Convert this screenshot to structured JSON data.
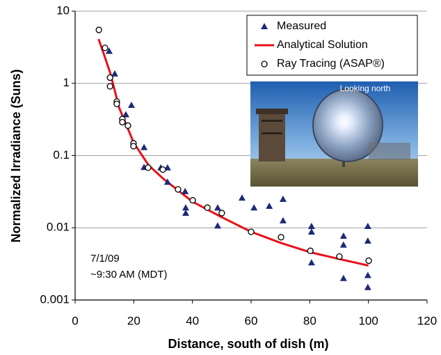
{
  "chart_data": {
    "type": "scatter",
    "xlabel": "Distance, south of dish (m)",
    "ylabel": "Normalized Irradiance (Suns)",
    "xlim": [
      0,
      120
    ],
    "xticks": [
      0,
      20,
      40,
      60,
      80,
      100,
      120
    ],
    "ylim": [
      0.001,
      10
    ],
    "yticks": [
      0.001,
      0.01,
      0.1,
      1,
      10
    ],
    "ylog": true,
    "grid": true,
    "legend": "upper right",
    "annotations": [
      "7/1/09",
      "~9:30 AM (MDT)"
    ],
    "inset_label": "Looking north",
    "series": [
      {
        "name": "Measured",
        "color": "#1c2a78",
        "marker": "triangle",
        "x": [
          11.6,
          13.5,
          17.3,
          19.2,
          23.5,
          23.5,
          29.2,
          31.5,
          31.5,
          37.5,
          37.7,
          37.7,
          48.6,
          48.6,
          56.9,
          61,
          66.2,
          70.9,
          70.9,
          80.6,
          80.6,
          80.6,
          91.5,
          91.5,
          91.5,
          99.8,
          99.8,
          99.8,
          99.8
        ],
        "values": [
          2.8,
          1.36,
          0.37,
          0.5,
          0.13,
          0.069,
          0.068,
          0.068,
          0.043,
          0.032,
          0.019,
          0.016,
          0.019,
          0.0107,
          0.026,
          0.019,
          0.02,
          0.025,
          0.0126,
          0.0105,
          0.0088,
          0.0033,
          0.0077,
          0.0058,
          0.002,
          0.0105,
          0.0066,
          0.0022,
          0.0015
        ]
      },
      {
        "name": "Analytical Solution",
        "color": "#e8101a",
        "marker": "line",
        "x": [
          8,
          10,
          12,
          15,
          20,
          25,
          30,
          40,
          50,
          60,
          70,
          80,
          90,
          100
        ],
        "values": [
          4.1,
          2.4,
          1.38,
          0.46,
          0.15,
          0.074,
          0.048,
          0.023,
          0.014,
          0.0088,
          0.0062,
          0.0046,
          0.0037,
          0.003
        ]
      },
      {
        "name": "Ray Tracing (ASAP®)",
        "color": "#000000",
        "marker": "circle",
        "x": [
          8.1,
          10.2,
          11.9,
          11.9,
          14.2,
          14.2,
          16.1,
          16.1,
          18,
          19.9,
          19.9,
          24.9,
          29.9,
          35.1,
          40.1,
          45.1,
          50,
          60,
          70.2,
          80.2,
          90.1,
          100.1
        ],
        "values": [
          5.5,
          3.1,
          1.2,
          0.91,
          0.56,
          0.52,
          0.32,
          0.29,
          0.26,
          0.148,
          0.135,
          0.068,
          0.064,
          0.034,
          0.024,
          0.019,
          0.016,
          0.0088,
          0.0074,
          0.0048,
          0.004,
          0.0035
        ]
      }
    ]
  }
}
